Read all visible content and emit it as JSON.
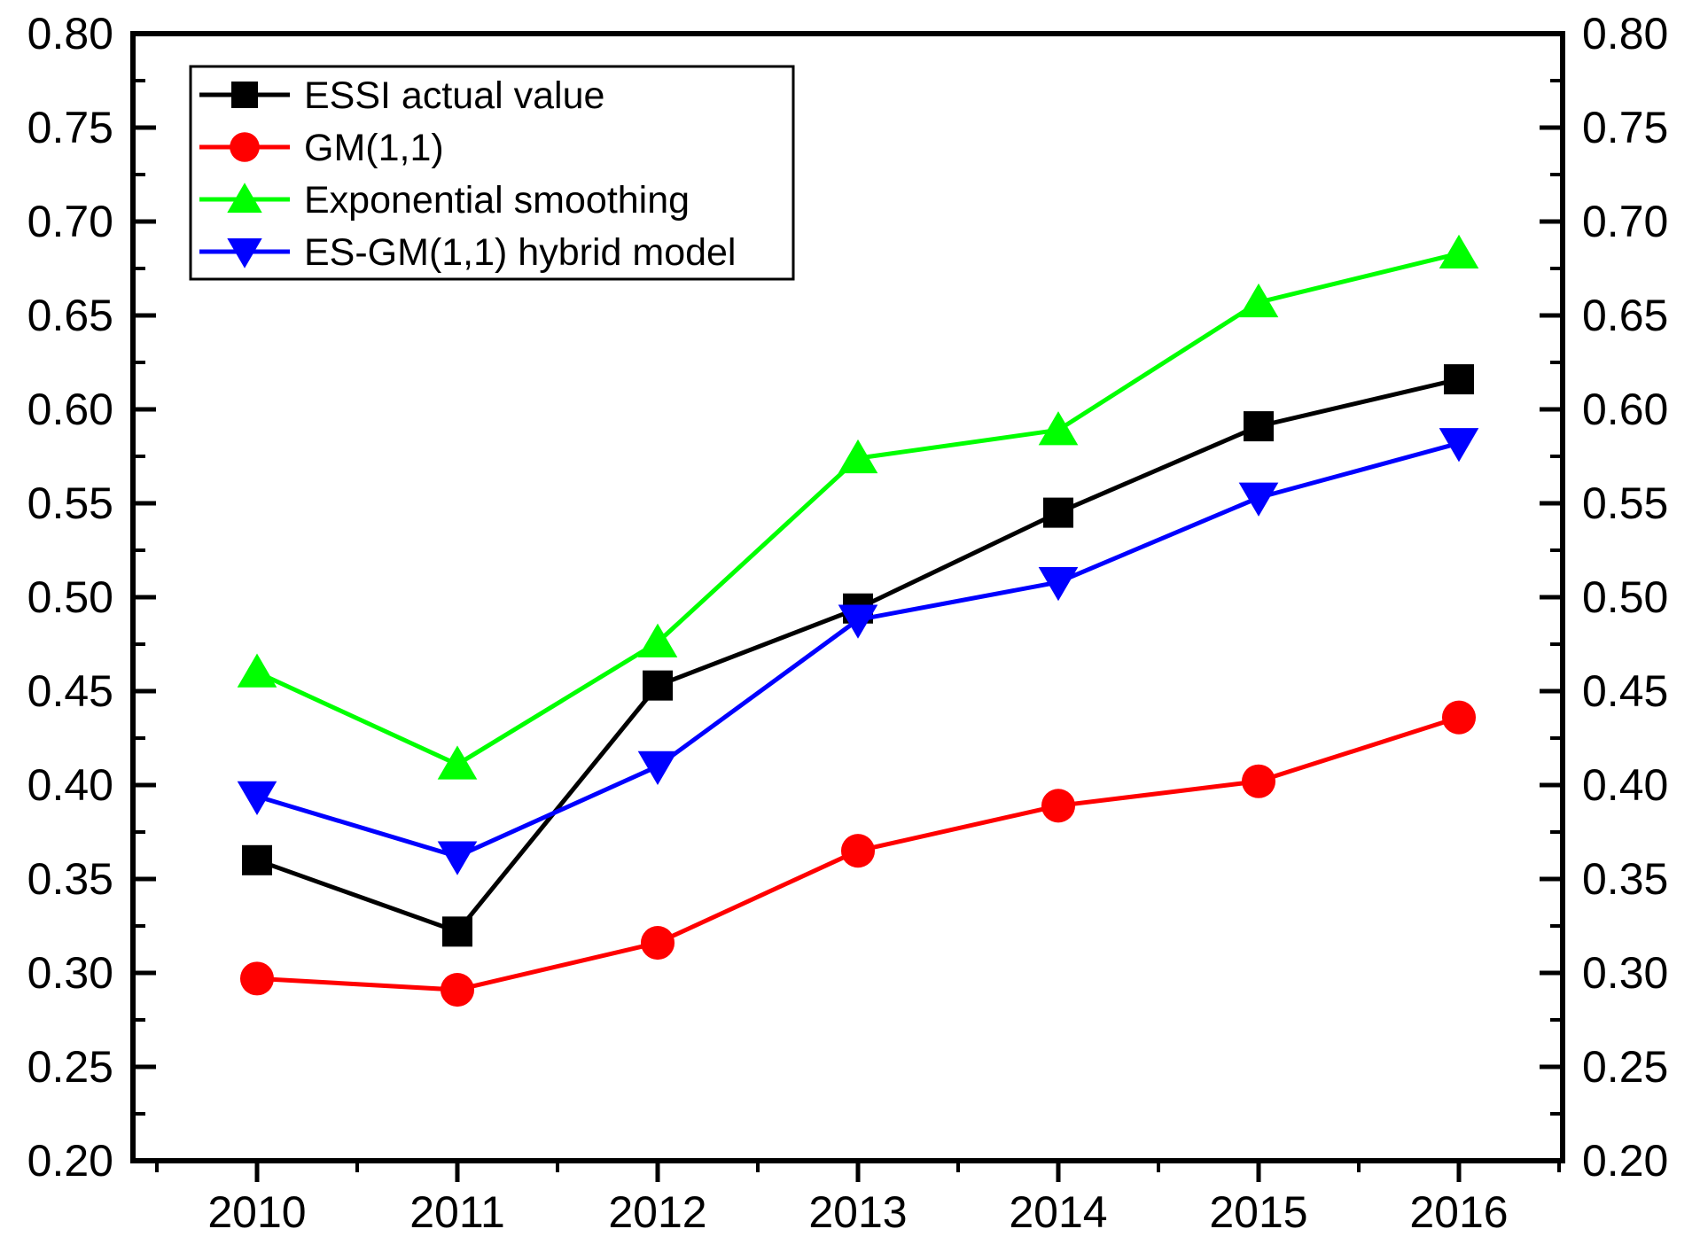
{
  "chart_data": {
    "type": "line",
    "title": "",
    "xlabel": "",
    "ylabel": "",
    "categories": [
      "2010",
      "2011",
      "2012",
      "2013",
      "2014",
      "2015",
      "2016"
    ],
    "ylim": [
      0.2,
      0.8
    ],
    "y_ticks": [
      "0.20",
      "0.25",
      "0.30",
      "0.35",
      "0.40",
      "0.45",
      "0.50",
      "0.55",
      "0.60",
      "0.65",
      "0.70",
      "0.75",
      "0.80"
    ],
    "y_tick_values": [
      0.2,
      0.25,
      0.3,
      0.35,
      0.4,
      0.45,
      0.5,
      0.55,
      0.6,
      0.65,
      0.7,
      0.75,
      0.8
    ],
    "right_axis_mirrors_left": true,
    "grid": false,
    "legend_position": "top-left",
    "series": [
      {
        "name": "ESSI actual value",
        "color": "#000000",
        "marker": "square",
        "values": [
          0.36,
          0.322,
          0.453,
          0.494,
          0.545,
          0.591,
          0.616
        ]
      },
      {
        "name": "GM(1,1)",
        "color": "#ff0000",
        "marker": "circle",
        "values": [
          0.297,
          0.291,
          0.316,
          0.365,
          0.389,
          0.402,
          0.436
        ]
      },
      {
        "name": "Exponential smoothing",
        "color": "#00ff00",
        "marker": "triangle-up",
        "values": [
          0.46,
          0.411,
          0.476,
          0.574,
          0.589,
          0.657,
          0.683
        ]
      },
      {
        "name": "ES-GM(1,1) hybrid model",
        "color": "#0000ff",
        "marker": "triangle-down",
        "values": [
          0.394,
          0.362,
          0.41,
          0.488,
          0.508,
          0.553,
          0.582
        ]
      }
    ]
  }
}
